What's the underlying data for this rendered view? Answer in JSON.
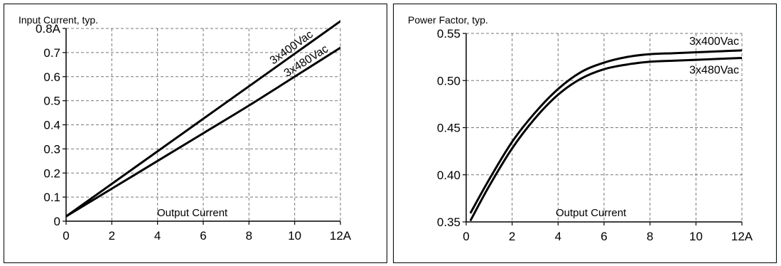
{
  "chart_data": [
    {
      "type": "line",
      "title": "Input Current, typ.",
      "xlabel": "Output Current",
      "ylabel": "",
      "xlim": [
        0,
        12
      ],
      "ylim": [
        0,
        0.8
      ],
      "x_ticks": [
        0,
        2,
        4,
        6,
        8,
        10,
        12
      ],
      "x_tick_labels": [
        "0",
        "2",
        "4",
        "6",
        "8",
        "10",
        "12A"
      ],
      "y_ticks": [
        0,
        0.1,
        0.2,
        0.3,
        0.4,
        0.5,
        0.6,
        0.7,
        0.8
      ],
      "y_tick_labels": [
        "0",
        "0.1",
        "0.2",
        "0.3",
        "0.4",
        "0.5",
        "0.6",
        "0.7",
        "0.8A"
      ],
      "grid": true,
      "series": [
        {
          "name": "3x400Vac",
          "x": [
            0,
            2,
            4,
            6,
            8,
            10,
            12
          ],
          "y": [
            0.02,
            0.155,
            0.29,
            0.425,
            0.56,
            0.695,
            0.83
          ]
        },
        {
          "name": "3x480Vac",
          "x": [
            0,
            2,
            4,
            6,
            8,
            10,
            12
          ],
          "y": [
            0.02,
            0.135,
            0.25,
            0.365,
            0.48,
            0.6,
            0.72
          ]
        }
      ]
    },
    {
      "type": "line",
      "title": "Power Factor, typ.",
      "xlabel": "Output Current",
      "ylabel": "",
      "xlim": [
        0,
        12
      ],
      "ylim": [
        0.35,
        0.55
      ],
      "x_ticks": [
        0,
        2,
        4,
        6,
        8,
        10,
        12
      ],
      "x_tick_labels": [
        "0",
        "2",
        "4",
        "6",
        "8",
        "10",
        "12A"
      ],
      "y_ticks": [
        0.35,
        0.4,
        0.45,
        0.5,
        0.55
      ],
      "y_tick_labels": [
        "0.35",
        "0.40",
        "0.45",
        "0.50",
        "0.55"
      ],
      "grid": true,
      "series": [
        {
          "name": "3x400Vac",
          "x": [
            0.2,
            1,
            2,
            3,
            4,
            5,
            6,
            7,
            8,
            9,
            10,
            11,
            12
          ],
          "y": [
            0.36,
            0.395,
            0.435,
            0.466,
            0.491,
            0.509,
            0.519,
            0.525,
            0.528,
            0.529,
            0.53,
            0.531,
            0.532
          ]
        },
        {
          "name": "3x480Vac",
          "x": [
            0.2,
            1,
            2,
            3,
            4,
            5,
            6,
            7,
            8,
            9,
            10,
            11,
            12
          ],
          "y": [
            0.352,
            0.388,
            0.428,
            0.46,
            0.485,
            0.502,
            0.512,
            0.517,
            0.52,
            0.521,
            0.522,
            0.523,
            0.524
          ]
        }
      ]
    }
  ]
}
